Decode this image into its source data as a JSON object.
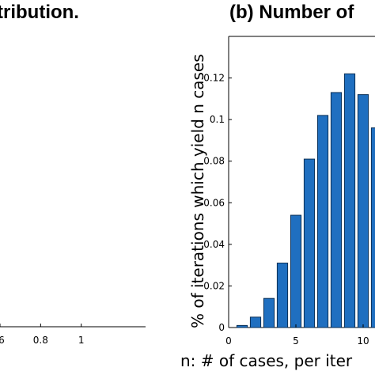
{
  "panels": {
    "left_title": "tribution.",
    "right_title": "(b) Number of"
  },
  "chart_data": [
    {
      "type": "line",
      "title": "tribution.",
      "xlabel": "",
      "ylabel": "",
      "x_tick_labels": [
        ".6",
        "0.8",
        "1"
      ],
      "x_ticks": [
        0.6,
        0.8,
        1.0
      ],
      "grid": false
    },
    {
      "type": "bar",
      "title": "(b) Number of",
      "xlabel": "n: # of cases, per iter",
      "ylabel": "% of iterations which yield n cases",
      "color": "#1f6fc0",
      "xlim": [
        0,
        15
      ],
      "ylim": [
        0,
        0.14
      ],
      "x_ticks": [
        0,
        5,
        10
      ],
      "x_tick_labels": [
        "0",
        "5",
        "10"
      ],
      "y_ticks": [
        0,
        0.02,
        0.04,
        0.06,
        0.08,
        0.1,
        0.12
      ],
      "y_tick_labels": [
        "0",
        "0.02",
        "0.04",
        "0.06",
        "0.08",
        "0.1",
        "0.12"
      ],
      "categories": [
        1,
        2,
        3,
        4,
        5,
        6,
        7,
        8,
        9,
        10,
        11
      ],
      "values": [
        0.001,
        0.005,
        0.014,
        0.031,
        0.054,
        0.081,
        0.102,
        0.113,
        0.122,
        0.112,
        0.096
      ],
      "grid": false
    }
  ]
}
